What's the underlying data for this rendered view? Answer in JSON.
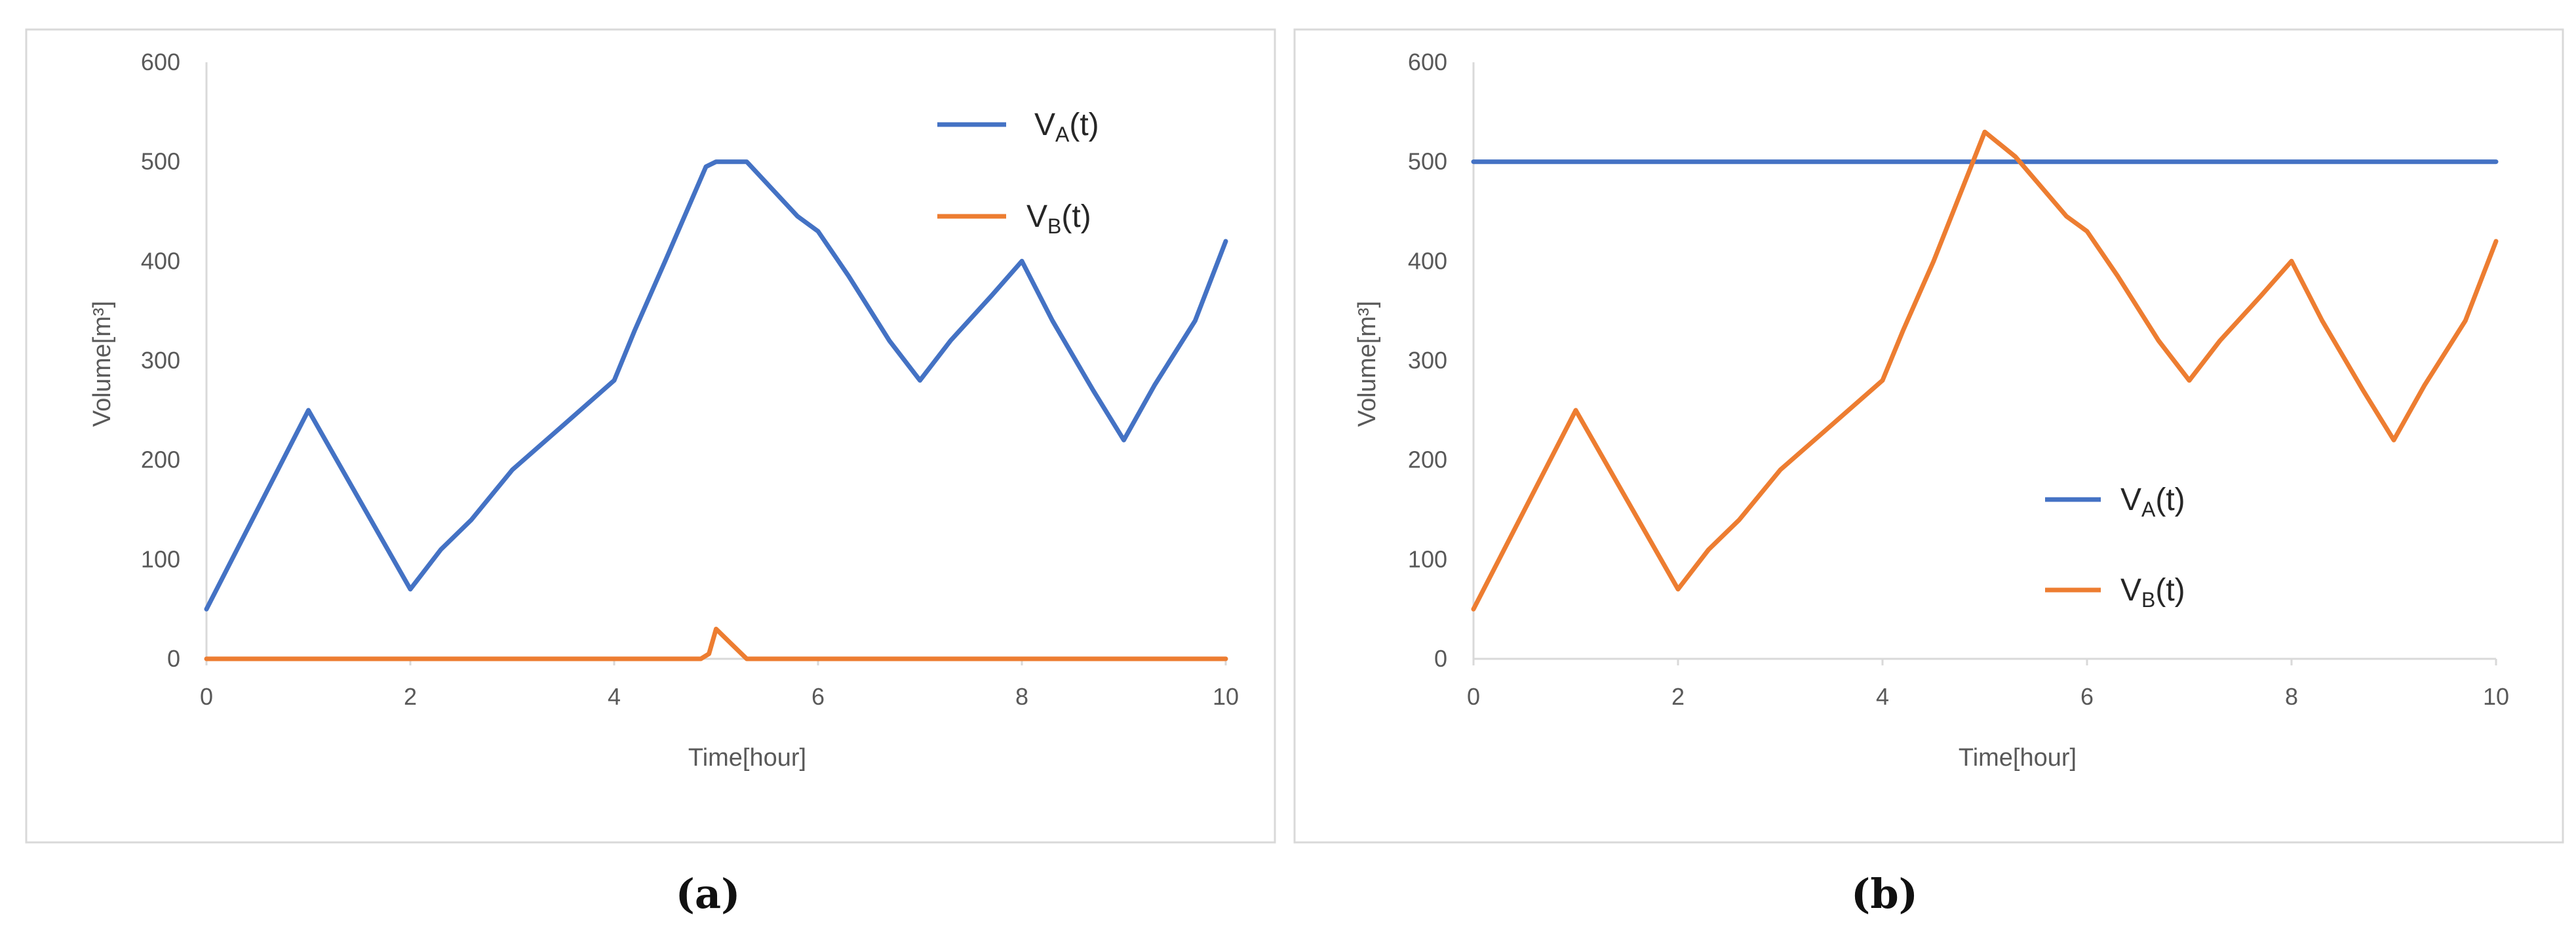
{
  "chart_data": [
    {
      "type": "line",
      "caption": "(a)",
      "xlabel": "Time[hour]",
      "ylabel": "Volume[m³]",
      "xlim": [
        0,
        10
      ],
      "ylim": [
        0,
        600
      ],
      "xticks": [
        0,
        2,
        4,
        6,
        8,
        10
      ],
      "yticks": [
        0,
        100,
        200,
        300,
        400,
        500,
        600
      ],
      "grid": false,
      "legend_position": "top-right",
      "series": [
        {
          "name": "V_A(t)",
          "color": "#4472C4",
          "points": [
            [
              0,
              50
            ],
            [
              1,
              250
            ],
            [
              2,
              70
            ],
            [
              2.3,
              110
            ],
            [
              2.6,
              140
            ],
            [
              3,
              190
            ],
            [
              3.5,
              235
            ],
            [
              4,
              280
            ],
            [
              4.2,
              330
            ],
            [
              4.5,
              400
            ],
            [
              4.9,
              495
            ],
            [
              5,
              500
            ],
            [
              5.3,
              500
            ],
            [
              5.8,
              445
            ],
            [
              6,
              430
            ],
            [
              6.3,
              385
            ],
            [
              6.7,
              320
            ],
            [
              7,
              280
            ],
            [
              7.3,
              320
            ],
            [
              7.7,
              365
            ],
            [
              8,
              400
            ],
            [
              8.3,
              340
            ],
            [
              8.7,
              270
            ],
            [
              9,
              220
            ],
            [
              9.3,
              275
            ],
            [
              9.7,
              340
            ],
            [
              10,
              420
            ]
          ]
        },
        {
          "name": "V_B(t)",
          "color": "#ED7D31",
          "points": [
            [
              0,
              0
            ],
            [
              4.85,
              0
            ],
            [
              4.93,
              5
            ],
            [
              5,
              30
            ],
            [
              5.15,
              15
            ],
            [
              5.3,
              0
            ],
            [
              10,
              0
            ]
          ]
        }
      ]
    },
    {
      "type": "line",
      "caption": "(b)",
      "xlabel": "Time[hour]",
      "ylabel": "Volume[m³]",
      "xlim": [
        0,
        10
      ],
      "ylim": [
        0,
        600
      ],
      "xticks": [
        0,
        2,
        4,
        6,
        8,
        10
      ],
      "yticks": [
        0,
        100,
        200,
        300,
        400,
        500,
        600
      ],
      "grid": false,
      "legend_position": "center-right",
      "series": [
        {
          "name": "V_A(t)",
          "color": "#4472C4",
          "points": [
            [
              0,
              500
            ],
            [
              10,
              500
            ]
          ]
        },
        {
          "name": "V_B(t)",
          "color": "#ED7D31",
          "points": [
            [
              0,
              50
            ],
            [
              1,
              250
            ],
            [
              2,
              70
            ],
            [
              2.3,
              110
            ],
            [
              2.6,
              140
            ],
            [
              3,
              190
            ],
            [
              3.5,
              235
            ],
            [
              4,
              280
            ],
            [
              4.2,
              330
            ],
            [
              4.5,
              400
            ],
            [
              5,
              530
            ],
            [
              5.3,
              505
            ],
            [
              5.8,
              445
            ],
            [
              6,
              430
            ],
            [
              6.3,
              385
            ],
            [
              6.7,
              320
            ],
            [
              7,
              280
            ],
            [
              7.3,
              320
            ],
            [
              7.7,
              365
            ],
            [
              8,
              400
            ],
            [
              8.3,
              340
            ],
            [
              8.7,
              270
            ],
            [
              9,
              220
            ],
            [
              9.3,
              275
            ],
            [
              9.7,
              340
            ],
            [
              10,
              420
            ]
          ]
        }
      ]
    }
  ]
}
